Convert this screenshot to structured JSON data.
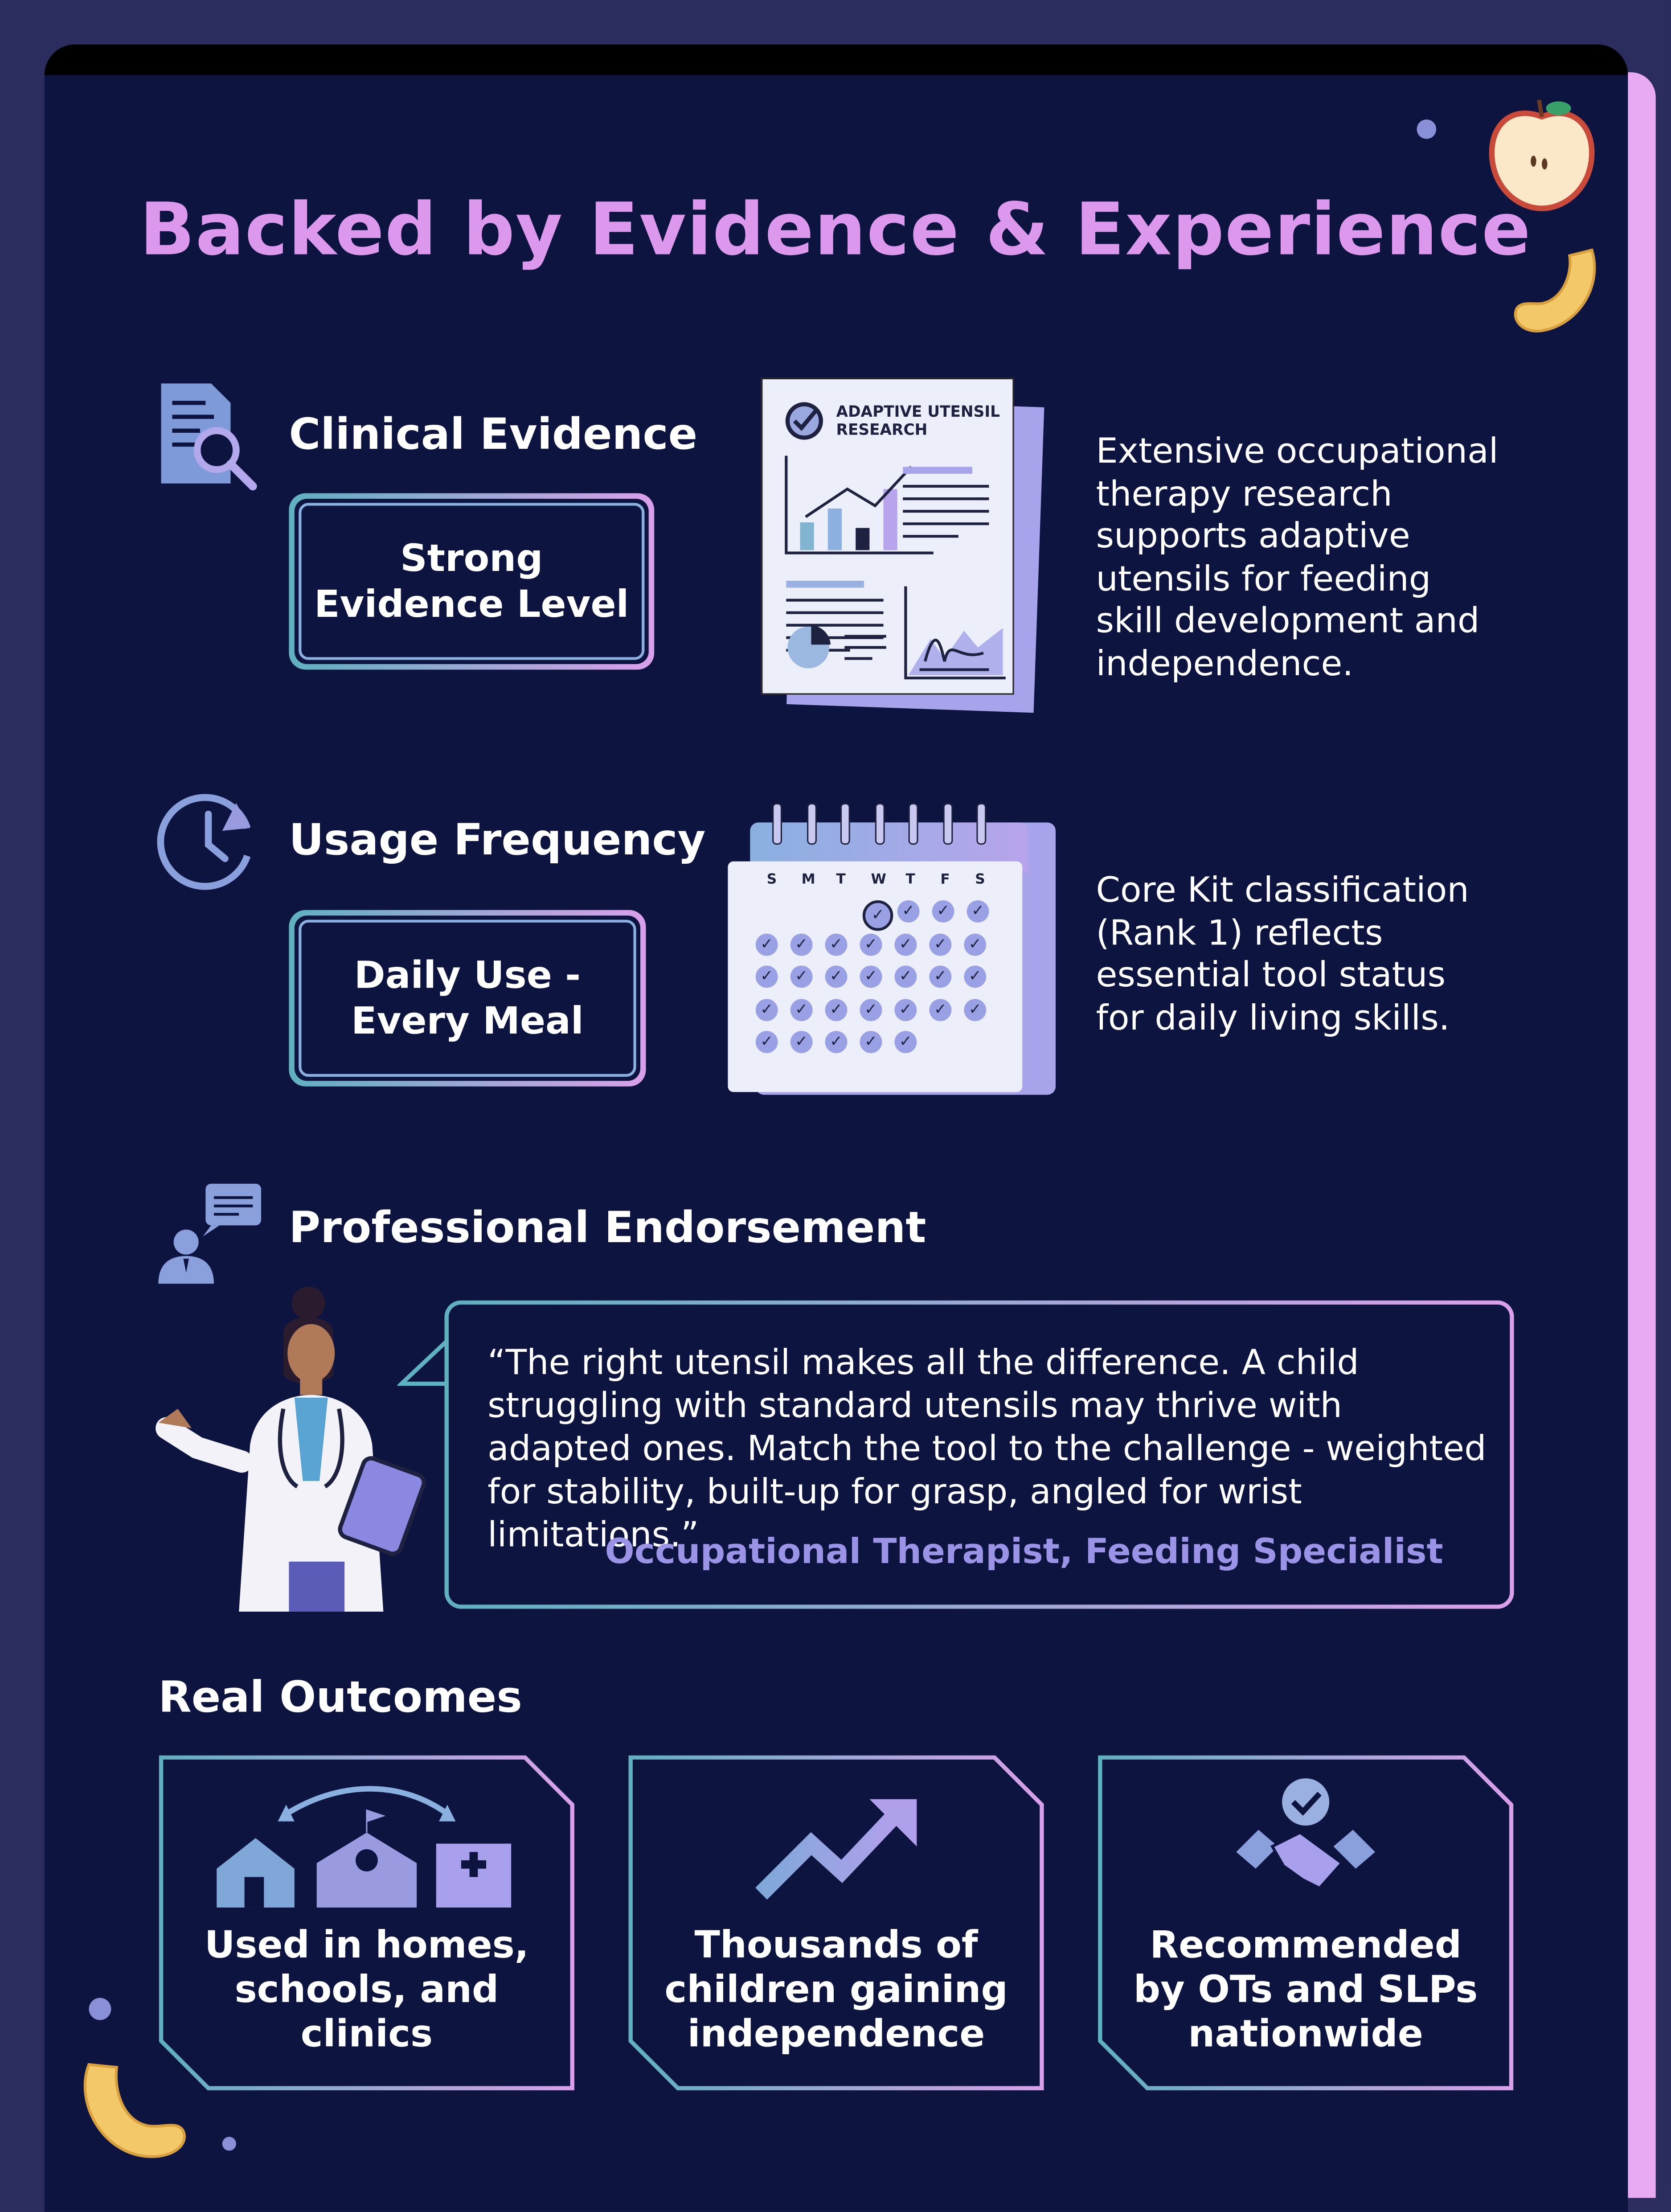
{
  "title": "Backed by Evidence & Experience",
  "colors": {
    "background": "#0e1440",
    "outer": "#2a2d5e",
    "title": "#dc98ec",
    "accent_teal": "#5fb0c0",
    "accent_pink": "#d9a0ea",
    "attribution": "#9b93e6"
  },
  "clinical": {
    "heading": "Clinical Evidence",
    "icon": "document-magnifier-icon",
    "badge": "Strong Evidence Level",
    "doc_title_line1": "ADAPTIVE UTENSIL",
    "doc_title_line2": "RESEARCH",
    "description": "Extensive occupational therapy research supports adaptive utensils for feeding skill development and independence."
  },
  "usage": {
    "heading": "Usage Frequency",
    "icon": "clock-icon",
    "badge": "Daily Use - Every Meal",
    "weekdays": [
      "S",
      "M",
      "T",
      "W",
      "T",
      "F",
      "S"
    ],
    "description": "Core Kit classification (Rank 1) reflects essential tool status for daily living skills."
  },
  "endorsement": {
    "heading": "Professional Endorsement",
    "icon": "professional-chat-icon",
    "quote": "“The right utensil makes all the difference. A child struggling with standard utensils may thrive with adapted ones. Match the tool to the challenge - weighted for stability, built-up for grasp, angled for wrist limitations.”",
    "attribution": "Occupational Therapist, Feeding Specialist"
  },
  "outcomes": {
    "heading": "Real Outcomes",
    "cards": [
      {
        "icon": "home-school-clinic-icon",
        "text": "Used in homes, schools, and clinics"
      },
      {
        "icon": "trend-up-arrow-icon",
        "text": "Thousands of children gaining independence"
      },
      {
        "icon": "handshake-check-icon",
        "text": "Recommended by OTs and SLPs nationwide"
      }
    ]
  }
}
